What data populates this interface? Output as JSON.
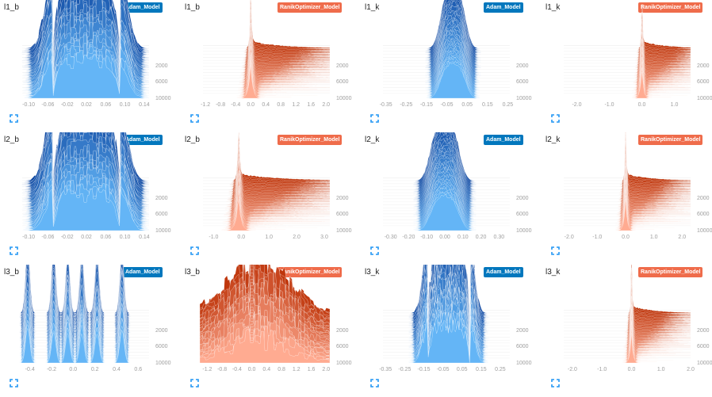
{
  "colors": {
    "adam": "#0277bd",
    "ranik": "#ef6c4b",
    "adam_dark": "#0d47a1",
    "adam_light": "#64b5f6",
    "ranik_dark": "#bf360c",
    "ranik_light": "#ffab91"
  },
  "icons": {
    "expand": "expand-icon"
  },
  "chart_data": [
    {
      "type": "area",
      "title": "l1_b",
      "run": "Adam_Model",
      "xticks": [
        "-0.10",
        "-0.06",
        "-0.02",
        "0.02",
        "0.06",
        "0.10",
        "0.14"
      ],
      "yticks": [
        "2000",
        "6000",
        "10000"
      ],
      "xlim": [
        -0.12,
        0.15
      ],
      "shape": "plateau",
      "center": 0.02,
      "spread": 0.07
    },
    {
      "type": "area",
      "title": "l1_b",
      "run": "RanikOptimizer_Model",
      "xticks": [
        "-1.2",
        "-0.8",
        "-0.4",
        "0.0",
        "0.4",
        "0.8",
        "1.2",
        "1.6",
        "2.0"
      ],
      "yticks": [
        "2000",
        "6000",
        "10000"
      ],
      "xlim": [
        -1.35,
        2.1
      ],
      "shape": "spike",
      "center": 0.0,
      "spread": 0.12
    },
    {
      "type": "area",
      "title": "l1_k",
      "run": "Adam_Model",
      "xticks": [
        "-0.35",
        "-0.25",
        "-0.15",
        "-0.05",
        "0.05",
        "0.15",
        "0.25"
      ],
      "yticks": [
        "2000",
        "6000",
        "10000"
      ],
      "xlim": [
        -0.38,
        0.26
      ],
      "shape": "bell",
      "center": -0.02,
      "spread": 0.07
    },
    {
      "type": "area",
      "title": "l1_k",
      "run": "RanikOptimizer_Model",
      "xticks": [
        "-2.0",
        "-1.0",
        "0.0",
        "1.0"
      ],
      "yticks": [
        "2000",
        "6000",
        "10000"
      ],
      "xlim": [
        -2.5,
        1.5
      ],
      "shape": "spike",
      "center": 0.0,
      "spread": 0.1
    },
    {
      "type": "area",
      "title": "l2_b",
      "run": "Adam_Model",
      "xticks": [
        "-0.10",
        "-0.06",
        "-0.02",
        "0.02",
        "0.06",
        "0.10",
        "0.14"
      ],
      "yticks": [
        "2000",
        "6000",
        "10000"
      ],
      "xlim": [
        -0.12,
        0.15
      ],
      "shape": "plateau",
      "center": 0.02,
      "spread": 0.07
    },
    {
      "type": "area",
      "title": "l2_b",
      "run": "RanikOptimizer_Model",
      "xticks": [
        "-1.0",
        "0.0",
        "1.0",
        "2.0",
        "3.0"
      ],
      "yticks": [
        "2000",
        "6000",
        "10000"
      ],
      "xlim": [
        -1.5,
        3.2
      ],
      "shape": "spike",
      "center": -0.1,
      "spread": 0.2
    },
    {
      "type": "area",
      "title": "l2_k",
      "run": "Adam_Model",
      "xticks": [
        "-0.30",
        "-0.20",
        "-0.10",
        "0.00",
        "0.10",
        "0.20",
        "0.30"
      ],
      "yticks": [
        "2000",
        "6000",
        "10000"
      ],
      "xlim": [
        -0.36,
        0.36
      ],
      "shape": "bell",
      "center": 0.0,
      "spread": 0.09
    },
    {
      "type": "area",
      "title": "l2_k",
      "run": "RanikOptimizer_Model",
      "xticks": [
        "-2.0",
        "-1.0",
        "0.0",
        "1.0",
        "2.0"
      ],
      "yticks": [
        "2000",
        "6000",
        "10000"
      ],
      "xlim": [
        -2.3,
        2.3
      ],
      "shape": "spike",
      "center": 0.0,
      "spread": 0.12
    },
    {
      "type": "area",
      "title": "l3_b",
      "run": "Adam_Model",
      "xticks": [
        "-0.4",
        "-0.2",
        "0.0",
        "0.2",
        "0.4",
        "0.6"
      ],
      "yticks": [
        "2000",
        "6000",
        "10000"
      ],
      "xlim": [
        -0.5,
        0.7
      ],
      "shape": "multi",
      "peaks": [
        -0.42,
        -0.18,
        -0.05,
        0.08,
        0.22,
        0.45
      ],
      "spread": 0.04
    },
    {
      "type": "area",
      "title": "l3_b",
      "run": "RanikOptimizer_Model",
      "xticks": [
        "-1.2",
        "-0.8",
        "-0.4",
        "0.0",
        "0.4",
        "0.8",
        "1.2",
        "1.6",
        "2.0"
      ],
      "yticks": [
        "2000",
        "6000",
        "10000"
      ],
      "xlim": [
        -1.4,
        2.1
      ],
      "shape": "scatter",
      "center": 0.2,
      "spread": 0.6
    },
    {
      "type": "area",
      "title": "l3_k",
      "run": "Adam_Model",
      "xticks": [
        "-0.35",
        "-0.25",
        "-0.15",
        "-0.05",
        "0.05",
        "0.15",
        "0.25"
      ],
      "yticks": [
        "2000",
        "6000",
        "10000"
      ],
      "xlim": [
        -0.38,
        0.3
      ],
      "shape": "plateau",
      "center": -0.02,
      "spread": 0.11
    },
    {
      "type": "area",
      "title": "l3_k",
      "run": "RanikOptimizer_Model",
      "xticks": [
        "-2.0",
        "-1.0",
        "0.0",
        "1.0",
        "2.0"
      ],
      "yticks": [
        "2000",
        "6000",
        "10000"
      ],
      "xlim": [
        -2.4,
        2.0
      ],
      "shape": "spike",
      "center": 0.0,
      "spread": 0.1
    }
  ]
}
